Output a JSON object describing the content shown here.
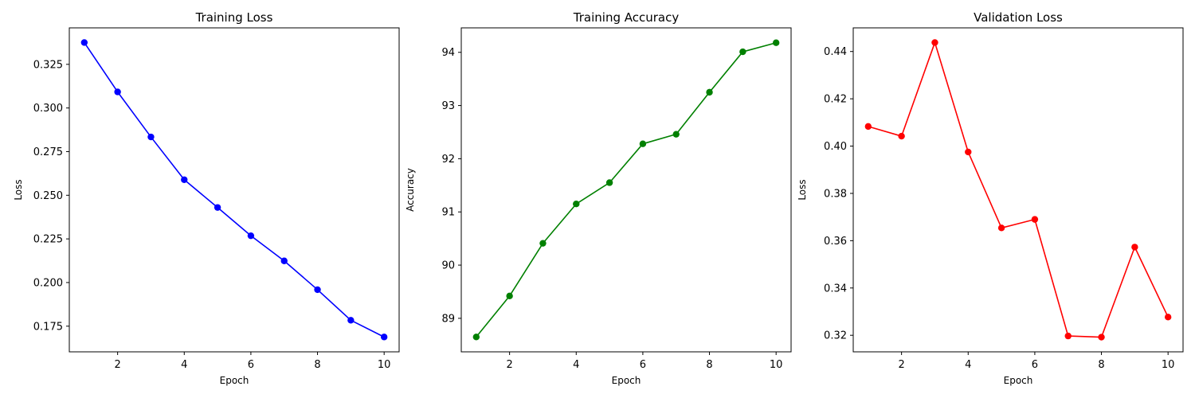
{
  "chart_data": [
    {
      "type": "line",
      "title": "Training Loss",
      "xlabel": "Epoch",
      "ylabel": "Loss",
      "x": [
        1,
        2,
        3,
        4,
        5,
        6,
        7,
        8,
        9,
        10
      ],
      "series": [
        {
          "values": [
            0.3375,
            0.3092,
            0.2834,
            0.2589,
            0.243,
            0.2268,
            0.2124,
            0.1959,
            0.1784,
            0.1688
          ],
          "color": "#0000ff"
        }
      ],
      "xlim": [
        0.55,
        10.45
      ],
      "ylim": [
        0.1603,
        0.3459
      ],
      "xticks": [
        2,
        4,
        6,
        8,
        10
      ],
      "yticks": [
        0.175,
        0.2,
        0.225,
        0.25,
        0.275,
        0.3,
        0.325
      ],
      "ytick_labels": [
        "0.175",
        "0.200",
        "0.225",
        "0.250",
        "0.275",
        "0.300",
        "0.325"
      ],
      "grid": false,
      "marker": "circle"
    },
    {
      "type": "line",
      "title": "Training Accuracy",
      "xlabel": "Epoch",
      "ylabel": "Accuracy",
      "x": [
        1,
        2,
        3,
        4,
        5,
        6,
        7,
        8,
        9,
        10
      ],
      "series": [
        {
          "values": [
            88.65,
            89.42,
            90.41,
            91.15,
            91.55,
            92.28,
            92.46,
            93.25,
            94.01,
            94.18
          ],
          "color": "#008000"
        }
      ],
      "xlim": [
        0.55,
        10.45
      ],
      "ylim": [
        88.37,
        94.46
      ],
      "xticks": [
        2,
        4,
        6,
        8,
        10
      ],
      "yticks": [
        89,
        90,
        91,
        92,
        93,
        94
      ],
      "ytick_labels": [
        "89",
        "90",
        "91",
        "92",
        "93",
        "94"
      ],
      "grid": false,
      "marker": "circle"
    },
    {
      "type": "line",
      "title": "Validation Loss",
      "xlabel": "Epoch",
      "ylabel": "Loss",
      "x": [
        1,
        2,
        3,
        4,
        5,
        6,
        7,
        8,
        9,
        10
      ],
      "series": [
        {
          "values": [
            0.4083,
            0.4042,
            0.4438,
            0.3975,
            0.3654,
            0.369,
            0.3197,
            0.3192,
            0.3573,
            0.3277
          ],
          "color": "#ff0000"
        }
      ],
      "xlim": [
        0.55,
        10.45
      ],
      "ylim": [
        0.313,
        0.45
      ],
      "xticks": [
        2,
        4,
        6,
        8,
        10
      ],
      "yticks": [
        0.32,
        0.34,
        0.36,
        0.38,
        0.4,
        0.42,
        0.44
      ],
      "ytick_labels": [
        "0.32",
        "0.34",
        "0.36",
        "0.38",
        "0.40",
        "0.42",
        "0.44"
      ],
      "grid": false,
      "marker": "circle"
    }
  ]
}
